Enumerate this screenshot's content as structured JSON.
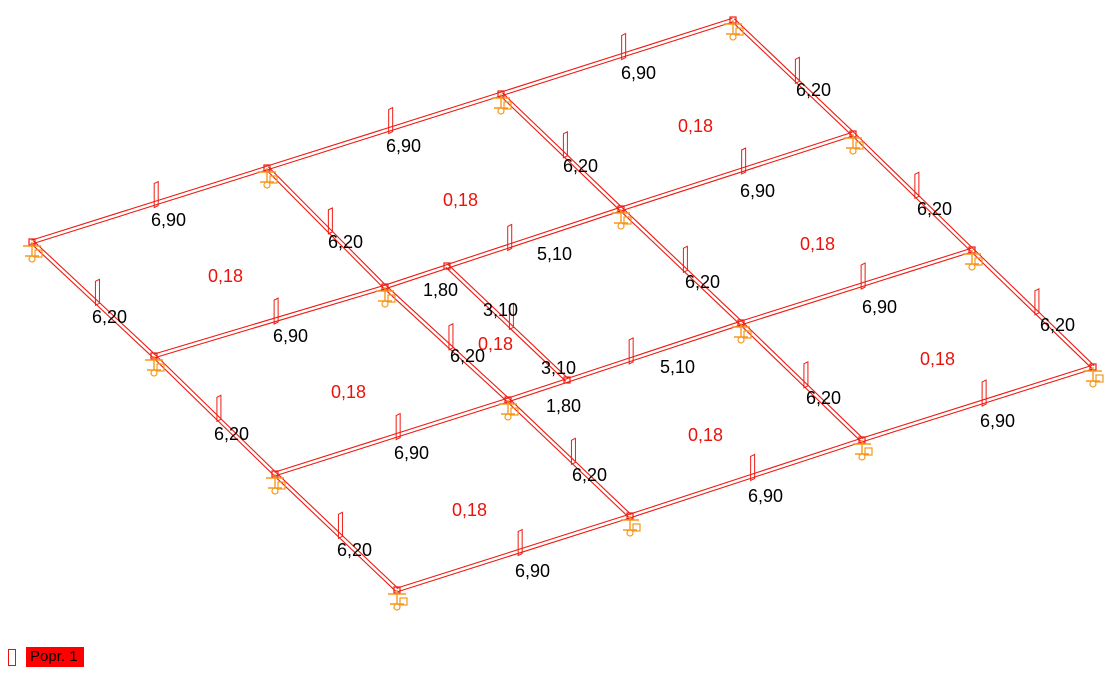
{
  "colors": {
    "beam": "#ee1b12",
    "support": "#f5981d",
    "label": "#000000",
    "area_label": "#e8140c",
    "legend_bg": "#ff0000"
  },
  "legend": {
    "label": "Popr. 1"
  },
  "beam_labels": {
    "b1": "6,90",
    "b2": "6,90",
    "b3": "6,90",
    "b4": "6,90",
    "b5": "6,90",
    "b6": "5,10",
    "b7": "6,90",
    "b8": "5,10",
    "b9": "6,90",
    "b10": "6,90",
    "b11": "6,90",
    "b12": "6,90",
    "c1": "6,20",
    "c2": "6,20",
    "c3": "6,20",
    "c4": "6,20",
    "c5": "6,20",
    "c6": "6,20",
    "c7": "6,20",
    "c8": "6,20",
    "c9": "6,20",
    "c10": "6,20",
    "c11": "6,20",
    "c12": "6,20",
    "s1": "1,80",
    "s2": "3,10",
    "s3": "3,10",
    "s4": "1,80"
  },
  "area_labels": {
    "a1": "0,18",
    "a2": "0,18",
    "a3": "0,18",
    "a4": "0,18",
    "a5": "0,18",
    "a6": "0,18",
    "a7": "0,18",
    "a8": "0,18",
    "a9": "0,18"
  }
}
